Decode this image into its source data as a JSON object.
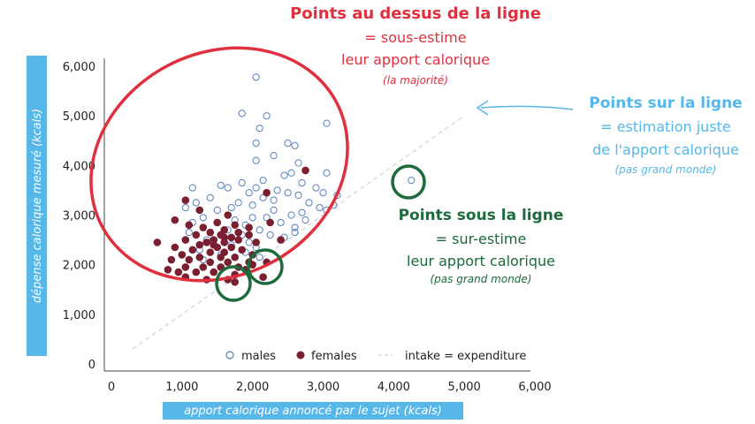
{
  "chart_data": {
    "type": "scatter",
    "xlabel": "apport calorique annoncé par le sujet (kcals)",
    "ylabel": "dépense calorique mesuré (kcals)",
    "xlim": [
      0,
      6000
    ],
    "ylim": [
      0,
      6000
    ],
    "x_ticks": [
      "0",
      "1,000",
      "2,000",
      "3,000",
      "4,000",
      "5,000",
      "6,000"
    ],
    "y_ticks": [
      "0",
      "1,000",
      "2,000",
      "3,000",
      "4,000",
      "5,000",
      "6,000"
    ],
    "grid": false,
    "legend_position": "bottom",
    "legend": {
      "males": "males",
      "females": "females",
      "line": "intake = expenditure"
    },
    "colors": {
      "males": "#5b7fb5",
      "females": "#7a1f30",
      "line": "#c9d4da",
      "red": "#e0303e",
      "blue": "#56b7e8",
      "green": "#1d6a3c"
    },
    "reference_line": {
      "from": [
        300,
        300
      ],
      "to": [
        5000,
        5000
      ]
    },
    "series": [
      {
        "name": "males",
        "points": [
          [
            2050,
            5780
          ],
          [
            1850,
            5050
          ],
          [
            2200,
            5000
          ],
          [
            3050,
            4850
          ],
          [
            2050,
            4450
          ],
          [
            2100,
            4750
          ],
          [
            2500,
            4450
          ],
          [
            2600,
            4400
          ],
          [
            2300,
            4200
          ],
          [
            2050,
            4100
          ],
          [
            2650,
            4050
          ],
          [
            2550,
            3850
          ],
          [
            2450,
            3800
          ],
          [
            3050,
            3850
          ],
          [
            2700,
            3650
          ],
          [
            2150,
            3700
          ],
          [
            1850,
            3650
          ],
          [
            2050,
            3550
          ],
          [
            2350,
            3500
          ],
          [
            2500,
            3450
          ],
          [
            2900,
            3550
          ],
          [
            3000,
            3450
          ],
          [
            3200,
            3400
          ],
          [
            2650,
            3400
          ],
          [
            2300,
            3300
          ],
          [
            2800,
            3250
          ],
          [
            2950,
            3150
          ],
          [
            3050,
            3100
          ],
          [
            3150,
            3200
          ],
          [
            2150,
            3350
          ],
          [
            1950,
            3450
          ],
          [
            1650,
            3550
          ],
          [
            1550,
            3600
          ],
          [
            1150,
            3550
          ],
          [
            1400,
            3350
          ],
          [
            1200,
            3250
          ],
          [
            1050,
            3150
          ],
          [
            1500,
            3100
          ],
          [
            1700,
            3150
          ],
          [
            1800,
            3250
          ],
          [
            2000,
            3200
          ],
          [
            2300,
            3100
          ],
          [
            2550,
            3000
          ],
          [
            2700,
            3050
          ],
          [
            2200,
            2950
          ],
          [
            2000,
            2950
          ],
          [
            1750,
            2900
          ],
          [
            1900,
            2800
          ],
          [
            2400,
            2850
          ],
          [
            2600,
            2750
          ],
          [
            1300,
            2950
          ],
          [
            1150,
            2850
          ],
          [
            1100,
            2650
          ],
          [
            1650,
            2700
          ],
          [
            1850,
            2600
          ],
          [
            2100,
            2700
          ],
          [
            2250,
            2600
          ],
          [
            2450,
            2550
          ],
          [
            1950,
            2450
          ],
          [
            1700,
            2400
          ],
          [
            1350,
            2500
          ],
          [
            1900,
            2250
          ],
          [
            2100,
            2150
          ],
          [
            2050,
            2350
          ],
          [
            1550,
            2200
          ],
          [
            1250,
            2300
          ],
          [
            1300,
            2100
          ],
          [
            2600,
            2650
          ],
          [
            2750,
            2900
          ],
          [
            4250,
            3700
          ]
        ]
      },
      {
        "name": "females",
        "points": [
          [
            2750,
            3900
          ],
          [
            2200,
            3450
          ],
          [
            1050,
            3300
          ],
          [
            1250,
            3100
          ],
          [
            1650,
            3000
          ],
          [
            900,
            2900
          ],
          [
            1100,
            2800
          ],
          [
            1500,
            2850
          ],
          [
            1750,
            2800
          ],
          [
            1300,
            2750
          ],
          [
            1950,
            2750
          ],
          [
            1600,
            2700
          ],
          [
            1400,
            2650
          ],
          [
            1550,
            2600
          ],
          [
            1700,
            2550
          ],
          [
            1450,
            2500
          ],
          [
            1800,
            2500
          ],
          [
            1350,
            2450
          ],
          [
            1600,
            2450
          ],
          [
            1950,
            2600
          ],
          [
            1050,
            2500
          ],
          [
            1250,
            2400
          ],
          [
            1500,
            2350
          ],
          [
            1700,
            2350
          ],
          [
            2050,
            2450
          ],
          [
            1150,
            2300
          ],
          [
            1400,
            2250
          ],
          [
            1600,
            2250
          ],
          [
            1850,
            2300
          ],
          [
            1000,
            2200
          ],
          [
            1250,
            2150
          ],
          [
            1550,
            2150
          ],
          [
            1750,
            2150
          ],
          [
            2000,
            2200
          ],
          [
            650,
            2450
          ],
          [
            900,
            2350
          ],
          [
            1100,
            2100
          ],
          [
            1400,
            2050
          ],
          [
            1650,
            2050
          ],
          [
            1950,
            2050
          ],
          [
            2200,
            2050
          ],
          [
            850,
            2100
          ],
          [
            1050,
            1950
          ],
          [
            1300,
            1950
          ],
          [
            1550,
            1950
          ],
          [
            1800,
            1950
          ],
          [
            950,
            1850
          ],
          [
            1200,
            1850
          ],
          [
            1450,
            1850
          ],
          [
            1750,
            1800
          ],
          [
            2150,
            1750
          ],
          [
            1050,
            1750
          ],
          [
            1650,
            1700
          ],
          [
            1750,
            1650
          ],
          [
            1600,
            2550
          ],
          [
            1800,
            2650
          ],
          [
            2250,
            2850
          ],
          [
            1200,
            2600
          ],
          [
            1450,
            2400
          ],
          [
            2000,
            2000
          ],
          [
            1900,
            1900
          ],
          [
            1350,
            1700
          ],
          [
            800,
            1900
          ],
          [
            2400,
            2500
          ]
        ]
      }
    ]
  },
  "annotations": {
    "above": {
      "title": "Points au dessus de la ligne",
      "line1": "= sous-estime",
      "line2": "leur apport calorique",
      "note": "(la majorité)"
    },
    "on": {
      "title": "Points sur la ligne",
      "line1": "= estimation juste",
      "line2": "de l'apport calorique",
      "note": "(pas grand monde)"
    },
    "below": {
      "title": "Points sous la ligne",
      "line1": "= sur-estime",
      "line2": "leur apport calorique",
      "note": "(pas grand monde)"
    }
  }
}
